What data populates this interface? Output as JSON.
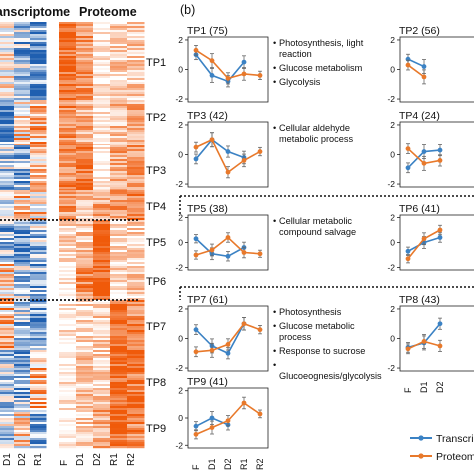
{
  "heatmap": {
    "transcriptome_label": "Transcriptome",
    "proteome_label": "Proteome",
    "transcriptome_columns": [
      "D1",
      "D2",
      "R1"
    ],
    "proteome_columns": [
      "F",
      "D1",
      "D2",
      "R1",
      "R2"
    ],
    "cluster_labels": [
      "TP1",
      "TP2",
      "TP3",
      "TP4",
      "TP5",
      "TP6",
      "TP7",
      "TP8",
      "TP9"
    ],
    "colors": {
      "low": "#1f5fb0",
      "mid": "#ffffff",
      "high": "#f05a0a"
    }
  },
  "panel_label": "(b)",
  "legend": {
    "transcriptome": "Transcriptome",
    "proteome": "Proteome"
  },
  "colors": {
    "transcriptome": "#3b82c4",
    "proteome": "#e8792b"
  },
  "chart_data": {
    "type": "line",
    "x": [
      "F",
      "D1",
      "D2",
      "R1",
      "R2"
    ],
    "yticks": [
      -2,
      0,
      2
    ],
    "ylim": [
      -2.2,
      2.2
    ],
    "panels": [
      {
        "id": "TP1",
        "title": "TP1 (75)",
        "annotations": [
          "Photosynthesis, light reaction",
          "Glucose metabolism",
          "Glycolysis"
        ],
        "series": [
          {
            "name": "Transcriptome",
            "values": [
              1.0,
              -0.4,
              -0.8,
              0.5,
              null
            ]
          },
          {
            "name": "Proteome",
            "values": [
              1.3,
              0.6,
              -0.6,
              -0.3,
              -0.4
            ]
          }
        ]
      },
      {
        "id": "TP2",
        "title": "TP2 (56)",
        "annotations": [],
        "series": [
          {
            "name": "Transcriptome",
            "values": [
              0.7,
              0.2,
              null,
              null,
              null
            ]
          },
          {
            "name": "Proteome",
            "values": [
              0.3,
              -0.5,
              null,
              null,
              null
            ]
          }
        ]
      },
      {
        "id": "TP3",
        "title": "TP3 (42)",
        "annotations": [
          "Cellular aldehyde metabolic process"
        ],
        "series": [
          {
            "name": "Transcriptome",
            "values": [
              -0.3,
              1.0,
              0.2,
              -0.2,
              null
            ]
          },
          {
            "name": "Proteome",
            "values": [
              0.5,
              1.0,
              -1.2,
              -0.4,
              0.2
            ]
          }
        ]
      },
      {
        "id": "TP4",
        "title": "TP4 (24)",
        "annotations": [],
        "series": [
          {
            "name": "Transcriptome",
            "values": [
              -0.9,
              0.2,
              0.3,
              null,
              null
            ]
          },
          {
            "name": "Proteome",
            "values": [
              0.4,
              -0.6,
              -0.4,
              null,
              null
            ]
          }
        ]
      },
      {
        "id": "TP5",
        "title": "TP5 (38)",
        "annotations": [
          "Cellular metabolic compound salvage"
        ],
        "series": [
          {
            "name": "Transcriptome",
            "values": [
              0.3,
              -0.9,
              -1.1,
              -0.4,
              null
            ]
          },
          {
            "name": "Proteome",
            "values": [
              -1.0,
              -0.6,
              0.4,
              -0.8,
              -0.9
            ]
          }
        ]
      },
      {
        "id": "TP6",
        "title": "TP6 (41)",
        "annotations": [],
        "series": [
          {
            "name": "Transcriptome",
            "values": [
              -0.7,
              0.0,
              0.4,
              null,
              null
            ]
          },
          {
            "name": "Proteome",
            "values": [
              -1.3,
              0.3,
              1.0,
              null,
              null
            ]
          }
        ]
      },
      {
        "id": "TP7",
        "title": "TP7 (61)",
        "annotations": [
          "Photosynthesis",
          "Glucose metabolic process",
          "Response to sucrose",
          "Glucoeognesis/glycolysis"
        ],
        "series": [
          {
            "name": "Transcriptome",
            "values": [
              0.6,
              -0.5,
              -1.0,
              1.0,
              null
            ]
          },
          {
            "name": "Proteome",
            "values": [
              -0.9,
              -0.8,
              -0.4,
              1.0,
              0.6
            ]
          }
        ]
      },
      {
        "id": "TP8",
        "title": "TP8 (43)",
        "annotations": [],
        "series": [
          {
            "name": "Transcriptome",
            "values": [
              -0.6,
              -0.3,
              1.0,
              null,
              null
            ]
          },
          {
            "name": "Proteome",
            "values": [
              -0.7,
              -0.2,
              -0.5,
              null,
              null
            ]
          }
        ]
      },
      {
        "id": "TP9",
        "title": "TP9 (41)",
        "annotations": [],
        "series": [
          {
            "name": "Transcriptome",
            "values": [
              -0.6,
              0.0,
              -0.5,
              null,
              null
            ]
          },
          {
            "name": "Proteome",
            "values": [
              -1.2,
              -0.7,
              -0.2,
              1.1,
              0.3
            ]
          }
        ]
      }
    ]
  }
}
